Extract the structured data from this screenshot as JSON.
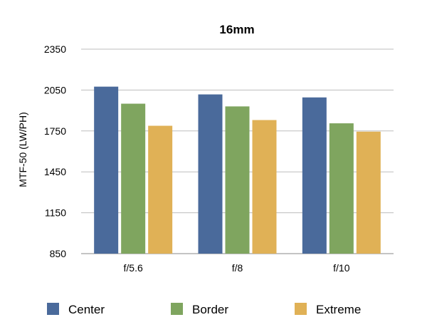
{
  "chart_data": {
    "type": "bar",
    "title": "16mm",
    "xlabel": "",
    "ylabel": "MTF-50 (LW/PH)",
    "categories": [
      "f/5.6",
      "f/8",
      "f/10"
    ],
    "series": [
      {
        "name": "Center",
        "color": "#4a6a9b",
        "values": [
          2075,
          2018,
          1996
        ]
      },
      {
        "name": "Border",
        "color": "#7fa55f",
        "values": [
          1950,
          1930,
          1806
        ]
      },
      {
        "name": "Extreme",
        "color": "#e0b156",
        "values": [
          1788,
          1830,
          1745
        ]
      }
    ],
    "ylim": [
      850,
      2350
    ],
    "yticks": [
      850,
      1150,
      1450,
      1750,
      2050,
      2350
    ],
    "grid": true,
    "legend_position": "bottom"
  }
}
